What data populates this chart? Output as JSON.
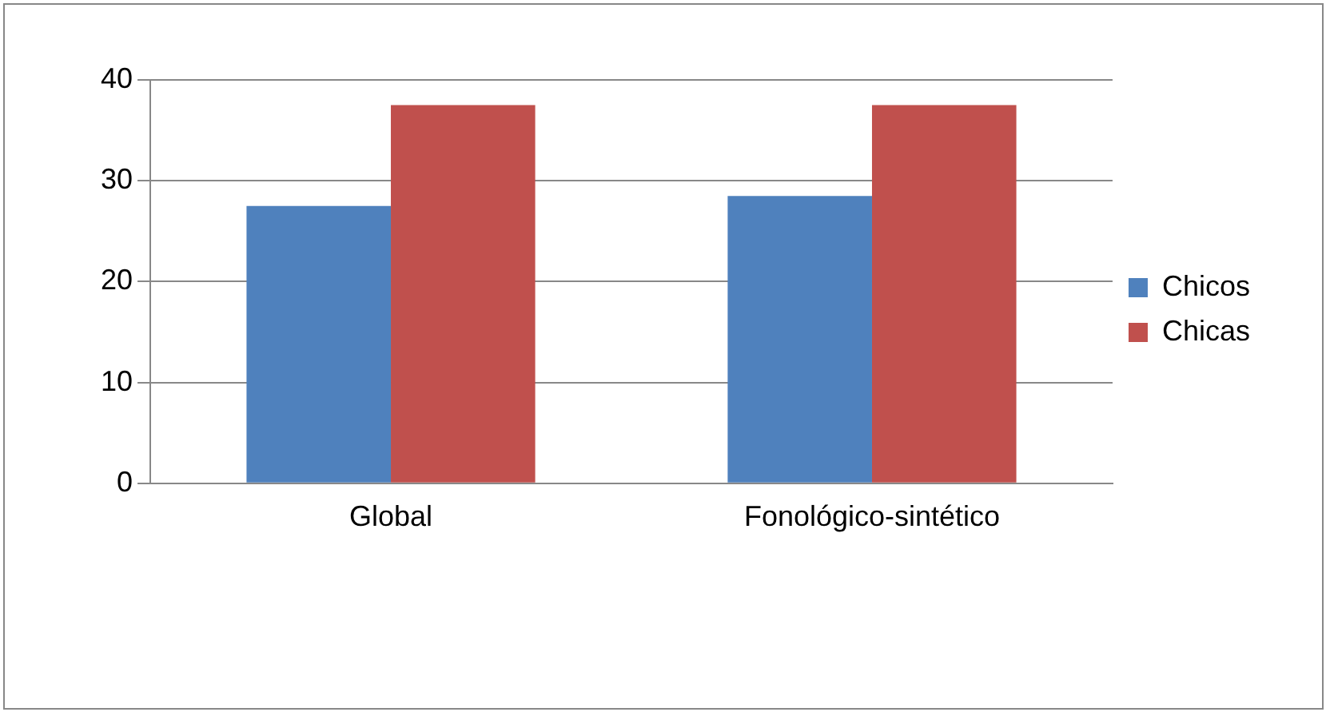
{
  "chart_data": {
    "type": "bar",
    "categories": [
      "Global",
      "Fonológico-sintético"
    ],
    "series": [
      {
        "name": "Chicos",
        "color": "#4f81bd",
        "values": [
          27.5,
          28.5
        ]
      },
      {
        "name": "Chicas",
        "color": "#c0504d",
        "values": [
          37.5,
          37.5
        ]
      }
    ],
    "ylim": [
      0,
      40
    ],
    "yticks": [
      0,
      10,
      20,
      30,
      40
    ],
    "grid": "y",
    "legend": "right"
  }
}
